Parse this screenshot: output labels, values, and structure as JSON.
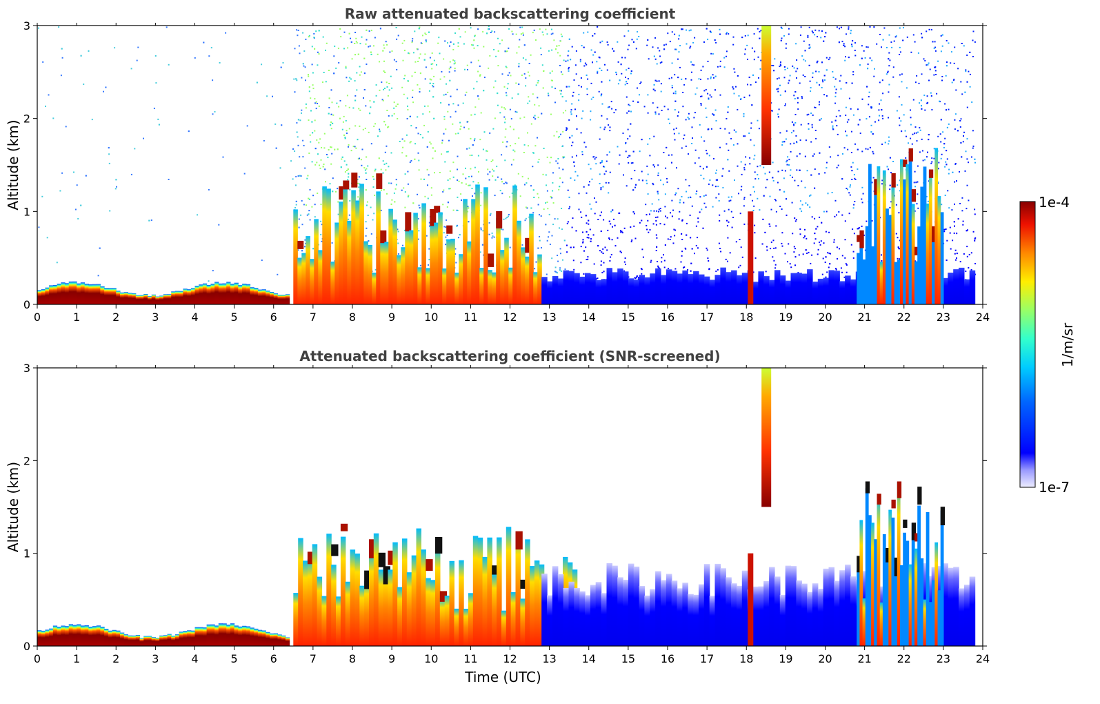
{
  "chart_data": [
    {
      "type": "heatmap",
      "title": "Raw attenuated backscattering coefficient",
      "xlabel": "",
      "ylabel": "Altitude (km)",
      "xlim": [
        0,
        24
      ],
      "ylim": [
        0,
        3
      ],
      "xticks": [
        "0",
        "1",
        "2",
        "3",
        "4",
        "5",
        "6",
        "7",
        "8",
        "9",
        "10",
        "11",
        "12",
        "13",
        "14",
        "15",
        "16",
        "17",
        "18",
        "19",
        "20",
        "21",
        "22",
        "23",
        "24"
      ],
      "yticks": [
        "0",
        "1",
        "2",
        "3"
      ],
      "features": [
        {
          "name": "boundary layer",
          "x": [
            0,
            6.4
          ],
          "y": [
            0,
            0.2
          ],
          "level": "high"
        },
        {
          "name": "morning clouds",
          "x": [
            6.5,
            12.8
          ],
          "y": [
            0,
            1.3
          ],
          "level": "high"
        },
        {
          "name": "aerosol layer",
          "x": [
            12.8,
            23.8
          ],
          "y": [
            0,
            0.4
          ],
          "level": "low"
        },
        {
          "name": "precipitation column",
          "x": [
            18.0,
            18.7
          ],
          "y": [
            0,
            3.0
          ],
          "level": "high"
        },
        {
          "name": "late clouds",
          "x": [
            20.8,
            23.0
          ],
          "y": [
            0,
            1.8
          ],
          "level": "high"
        }
      ]
    },
    {
      "type": "heatmap",
      "title": "Attenuated backscattering coefficient (SNR-screened)",
      "xlabel": "Time (UTC)",
      "ylabel": "Altitude (km)",
      "xlim": [
        0,
        24
      ],
      "ylim": [
        0,
        3
      ],
      "xticks": [
        "0",
        "1",
        "2",
        "3",
        "4",
        "5",
        "6",
        "7",
        "8",
        "9",
        "10",
        "11",
        "12",
        "13",
        "14",
        "15",
        "16",
        "17",
        "18",
        "19",
        "20",
        "21",
        "22",
        "23",
        "24"
      ],
      "yticks": [
        "0",
        "1",
        "2",
        "3"
      ],
      "features": [
        {
          "name": "boundary layer",
          "x": [
            0,
            6.4
          ],
          "y": [
            0,
            0.2
          ],
          "level": "high"
        },
        {
          "name": "morning clouds",
          "x": [
            6.5,
            13.7
          ],
          "y": [
            0,
            1.3
          ],
          "level": "high"
        },
        {
          "name": "aerosol layer",
          "x": [
            12.8,
            23.8
          ],
          "y": [
            0,
            0.9
          ],
          "level": "low"
        },
        {
          "name": "precipitation column",
          "x": [
            18.0,
            18.7
          ],
          "y": [
            0,
            3.0
          ],
          "level": "high"
        },
        {
          "name": "late clouds",
          "x": [
            20.8,
            23.0
          ],
          "y": [
            0,
            1.8
          ],
          "level": "high"
        }
      ]
    }
  ],
  "colorbar": {
    "label": "1/m/sr",
    "max_label": "1e-4",
    "min_label": "1e-7",
    "colormap": "jet"
  }
}
